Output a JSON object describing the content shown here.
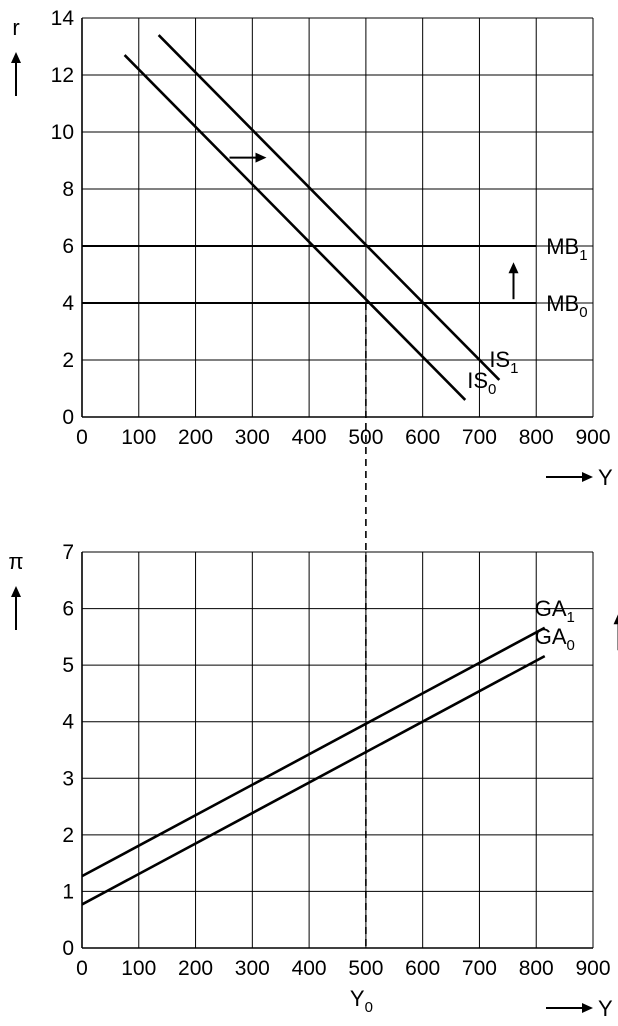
{
  "chart_data": [
    {
      "type": "line",
      "ylabel": "r",
      "xlabel": "Y",
      "xlim": [
        0,
        900
      ],
      "ylim": [
        0,
        14
      ],
      "x_ticks": [
        "0",
        "100",
        "200",
        "300",
        "400",
        "500",
        "600",
        "700",
        "800",
        "900"
      ],
      "y_ticks": [
        "0",
        "2",
        "4",
        "6",
        "8",
        "10",
        "12",
        "14"
      ],
      "grid": true,
      "series": [
        {
          "name": "IS",
          "subscript": "0",
          "points": [
            [
              75,
              12.7
            ],
            [
              675,
              0.6
            ]
          ]
        },
        {
          "name": "IS",
          "subscript": "1",
          "points": [
            [
              135,
              13.4
            ],
            [
              735,
              1.3
            ]
          ]
        },
        {
          "name": "MB",
          "subscript": "0",
          "points": [
            [
              0,
              4
            ],
            [
              800,
              4
            ]
          ]
        },
        {
          "name": "MB",
          "subscript": "1",
          "points": [
            [
              0,
              6
            ],
            [
              800,
              6
            ]
          ]
        }
      ],
      "annotations": [
        {
          "kind": "arrow-right",
          "x": 295,
          "y": 9.1
        },
        {
          "kind": "arrow-up",
          "x": 760,
          "y": 4.8
        }
      ]
    },
    {
      "type": "line",
      "ylabel": "π",
      "xlabel": "Y",
      "xlim": [
        0,
        900
      ],
      "ylim": [
        0,
        7
      ],
      "x_ticks": [
        "0",
        "100",
        "200",
        "300",
        "400",
        "500",
        "600",
        "700",
        "800",
        "900"
      ],
      "y_ticks": [
        "0",
        "1",
        "2",
        "3",
        "4",
        "5",
        "6",
        "7"
      ],
      "grid": true,
      "series": [
        {
          "name": "GA",
          "subscript": "0",
          "points": [
            [
              0,
              0.77
            ],
            [
              815,
              5.16
            ]
          ]
        },
        {
          "name": "GA",
          "subscript": "1",
          "points": [
            [
              0,
              1.27
            ],
            [
              815,
              5.66
            ]
          ]
        }
      ],
      "annotations": [
        {
          "kind": "arrow-up",
          "x": 945,
          "y": 5.6
        }
      ]
    }
  ],
  "shared": {
    "dashed_x": 500,
    "dashed_label": "Y",
    "dashed_label_sub": "0"
  }
}
